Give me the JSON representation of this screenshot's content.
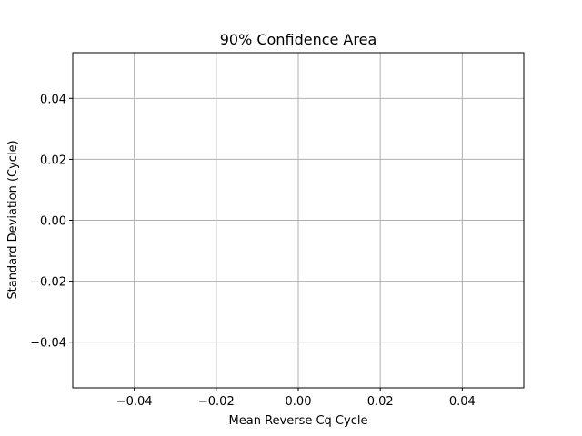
{
  "chart_data": {
    "type": "scatter",
    "title": "90% Confidence Area",
    "xlabel": "Mean Reverse Cq Cycle",
    "ylabel": "Standard Deviation (Cycle)",
    "xlim": [
      -0.055,
      0.055
    ],
    "ylim": [
      -0.055,
      0.055
    ],
    "x_ticks": [
      -0.04,
      -0.02,
      0.0,
      0.02,
      0.04
    ],
    "x_tick_labels": [
      "−0.04",
      "−0.02",
      "0.00",
      "0.02",
      "0.04"
    ],
    "y_ticks": [
      0.04,
      0.02,
      0.0,
      -0.02,
      -0.04
    ],
    "y_tick_labels": [
      "0.04",
      "0.02",
      "0.00",
      "−0.02",
      "−0.04"
    ],
    "grid": true,
    "series": [],
    "colors": {
      "grid": "#b0b0b0",
      "axes": "#000000",
      "background": "#ffffff"
    }
  }
}
